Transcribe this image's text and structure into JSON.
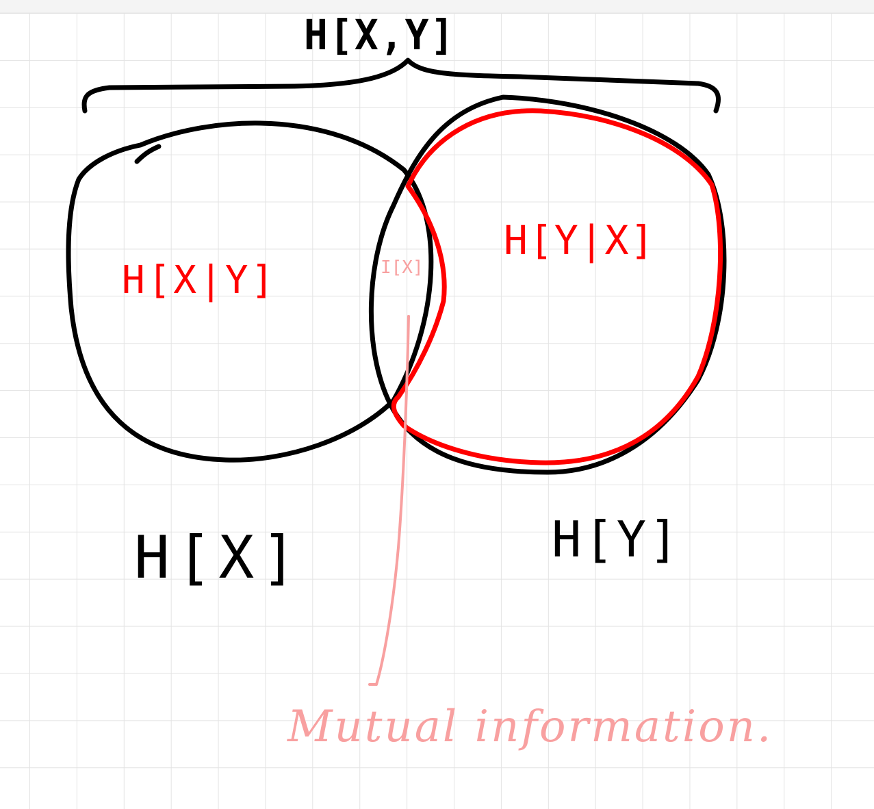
{
  "labels": {
    "joint_entropy": "H[X,Y]",
    "conditional_x_given_y": "H[X|Y]",
    "conditional_y_given_x": "H[Y|X]",
    "mutual_info_symbol": "I[X]",
    "entropy_x": "H[X]",
    "entropy_y": "H[Y]",
    "annotation": "Mutual information."
  },
  "colors": {
    "ink_black": "#000000",
    "ink_red": "#ff0000",
    "ink_pink": "#f8a0a0",
    "grid": "#e3e3e3",
    "background": "#ffffff"
  }
}
